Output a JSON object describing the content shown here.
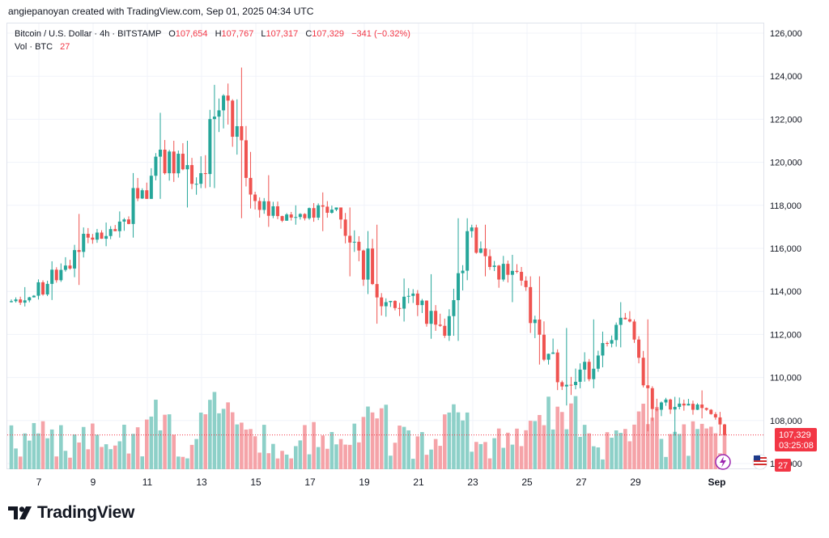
{
  "header": {
    "attribution": "angiepanoyan created with TradingView.com, Sep 01, 2025 04:34 UTC"
  },
  "legend": {
    "symbol": "Bitcoin / U.S. Dollar · 4h · BITSTAMP",
    "open_label": "O",
    "open": "107,654",
    "high_label": "H",
    "high": "107,767",
    "low_label": "L",
    "low": "107,317",
    "close_label": "C",
    "close": "107,329",
    "change": "−341 (−0.32%)",
    "vol_label": "Vol · BTC",
    "vol": "27"
  },
  "price_axis": {
    "ticks": [
      "126,000",
      "124,000",
      "122,000",
      "120,000",
      "118,000",
      "116,000",
      "114,000",
      "112,000",
      "110,000",
      "108,000",
      "106,000"
    ],
    "last_price": "107,329",
    "countdown": "03:25:08",
    "vol_badge": "27"
  },
  "time_axis": {
    "ticks": [
      "7",
      "9",
      "11",
      "13",
      "15",
      "17",
      "19",
      "21",
      "23",
      "25",
      "27",
      "29",
      "Sep"
    ]
  },
  "footer": {
    "brand": "TradingView"
  },
  "colors": {
    "up": "#26a69a",
    "down": "#ef5350",
    "vol_up": "#8dd0c8",
    "vol_down": "#f5a3a8",
    "grid": "#f0f3fa",
    "text": "#131722"
  },
  "chart_data": {
    "type": "candlestick",
    "title": "Bitcoin / U.S. Dollar · 4h · BITSTAMP",
    "interval": "4h",
    "x": [
      "7",
      "9",
      "11",
      "13",
      "15",
      "17",
      "19",
      "21",
      "23",
      "25",
      "27",
      "29",
      "Sep"
    ],
    "ylim": [
      105500,
      126500
    ],
    "ohlc_daily": [
      {
        "day": "6",
        "open": 113500,
        "high": 114200,
        "low": 113300,
        "close": 113800
      },
      {
        "day": "7",
        "open": 113800,
        "high": 115400,
        "low": 113600,
        "close": 115000
      },
      {
        "day": "8",
        "open": 115000,
        "high": 117600,
        "low": 114300,
        "close": 116500
      },
      {
        "day": "9",
        "open": 116500,
        "high": 117200,
        "low": 116100,
        "close": 116800
      },
      {
        "day": "10",
        "open": 116800,
        "high": 119500,
        "low": 116500,
        "close": 118700
      },
      {
        "day": "11",
        "open": 118700,
        "high": 122300,
        "low": 118300,
        "close": 120500
      },
      {
        "day": "12",
        "open": 120500,
        "high": 121000,
        "low": 117900,
        "close": 119000
      },
      {
        "day": "13",
        "open": 119000,
        "high": 123600,
        "low": 118800,
        "close": 123100
      },
      {
        "day": "14",
        "open": 123100,
        "high": 124400,
        "low": 117400,
        "close": 118500
      },
      {
        "day": "15",
        "open": 118500,
        "high": 119400,
        "low": 117000,
        "close": 117500
      },
      {
        "day": "16",
        "open": 117500,
        "high": 118000,
        "low": 117100,
        "close": 117400
      },
      {
        "day": "17",
        "open": 117400,
        "high": 118600,
        "low": 116800,
        "close": 117800
      },
      {
        "day": "18",
        "open": 117800,
        "high": 117900,
        "low": 114700,
        "close": 115900
      },
      {
        "day": "19",
        "open": 115900,
        "high": 117100,
        "low": 112500,
        "close": 113500
      },
      {
        "day": "20",
        "open": 113500,
        "high": 114600,
        "low": 112600,
        "close": 113900
      },
      {
        "day": "21",
        "open": 113900,
        "high": 114800,
        "low": 111800,
        "close": 112400
      },
      {
        "day": "22",
        "open": 112400,
        "high": 117400,
        "low": 111700,
        "close": 116800
      },
      {
        "day": "23",
        "open": 116800,
        "high": 117100,
        "low": 114700,
        "close": 115200
      },
      {
        "day": "24",
        "open": 115200,
        "high": 115700,
        "low": 113500,
        "close": 114500
      },
      {
        "day": "25",
        "open": 114500,
        "high": 114700,
        "low": 110600,
        "close": 111100
      },
      {
        "day": "26",
        "open": 111100,
        "high": 112300,
        "low": 108700,
        "close": 109800
      },
      {
        "day": "27",
        "open": 109800,
        "high": 112700,
        "low": 109500,
        "close": 111600
      },
      {
        "day": "28",
        "open": 111600,
        "high": 113500,
        "low": 111400,
        "close": 112600
      },
      {
        "day": "29",
        "open": 112600,
        "high": 112700,
        "low": 107500,
        "close": 108500
      },
      {
        "day": "30",
        "open": 108500,
        "high": 109100,
        "low": 107300,
        "close": 108700
      },
      {
        "day": "31",
        "open": 108700,
        "high": 109400,
        "low": 108100,
        "close": 108300
      },
      {
        "day": "Sep 1",
        "open": 108300,
        "high": 108400,
        "low": 107300,
        "close": 107329
      }
    ],
    "last_close": 107329
  }
}
